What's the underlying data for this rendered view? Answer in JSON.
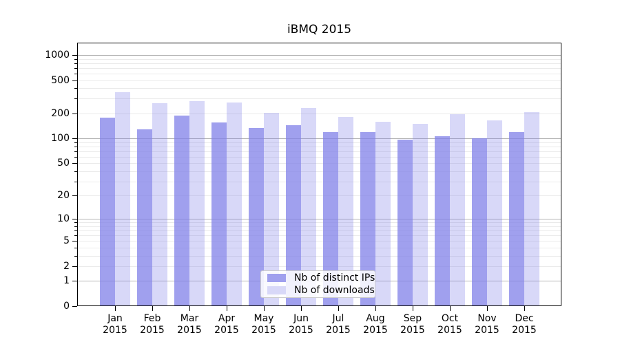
{
  "chart_data": {
    "type": "bar",
    "title": "iBMQ 2015",
    "categories": [
      "Jan",
      "Feb",
      "Mar",
      "Apr",
      "May",
      "Jun",
      "Jul",
      "Aug",
      "Sep",
      "Oct",
      "Nov",
      "Dec"
    ],
    "year_label": "2015",
    "series": [
      {
        "name": "Nb of distinct IPs",
        "fill": "rgba(128,128,232,0.75)",
        "swatch": "#a0a0ee",
        "values": [
          174,
          125,
          183,
          152,
          130,
          141,
          116,
          117,
          94,
          105,
          99,
          118
        ]
      },
      {
        "name": "Nb of downloads",
        "fill": "rgba(128,128,232,0.31)",
        "swatch": "#d8d8f8",
        "values": [
          350,
          258,
          273,
          266,
          200,
          229,
          178,
          156,
          146,
          191,
          162,
          204
        ]
      }
    ],
    "xlabel": "",
    "ylabel": "",
    "yscale": "log1p",
    "ylim": [
      0,
      1380
    ],
    "yticks": [
      0,
      1,
      2,
      5,
      10,
      20,
      50,
      100,
      200,
      500,
      1000
    ],
    "minor_yticks": [
      3,
      4,
      6,
      7,
      8,
      9,
      30,
      40,
      60,
      70,
      80,
      90,
      300,
      400,
      600,
      700,
      800,
      900
    ],
    "major_grid_yticks": [
      1,
      10,
      100,
      1000
    ],
    "grid": true,
    "legend_position": "lower-center-inside",
    "colors": {
      "major_grid": "#b3b3b3",
      "minor_grid": "#eaeaea",
      "spine": "#000000",
      "text": "#000000"
    }
  }
}
